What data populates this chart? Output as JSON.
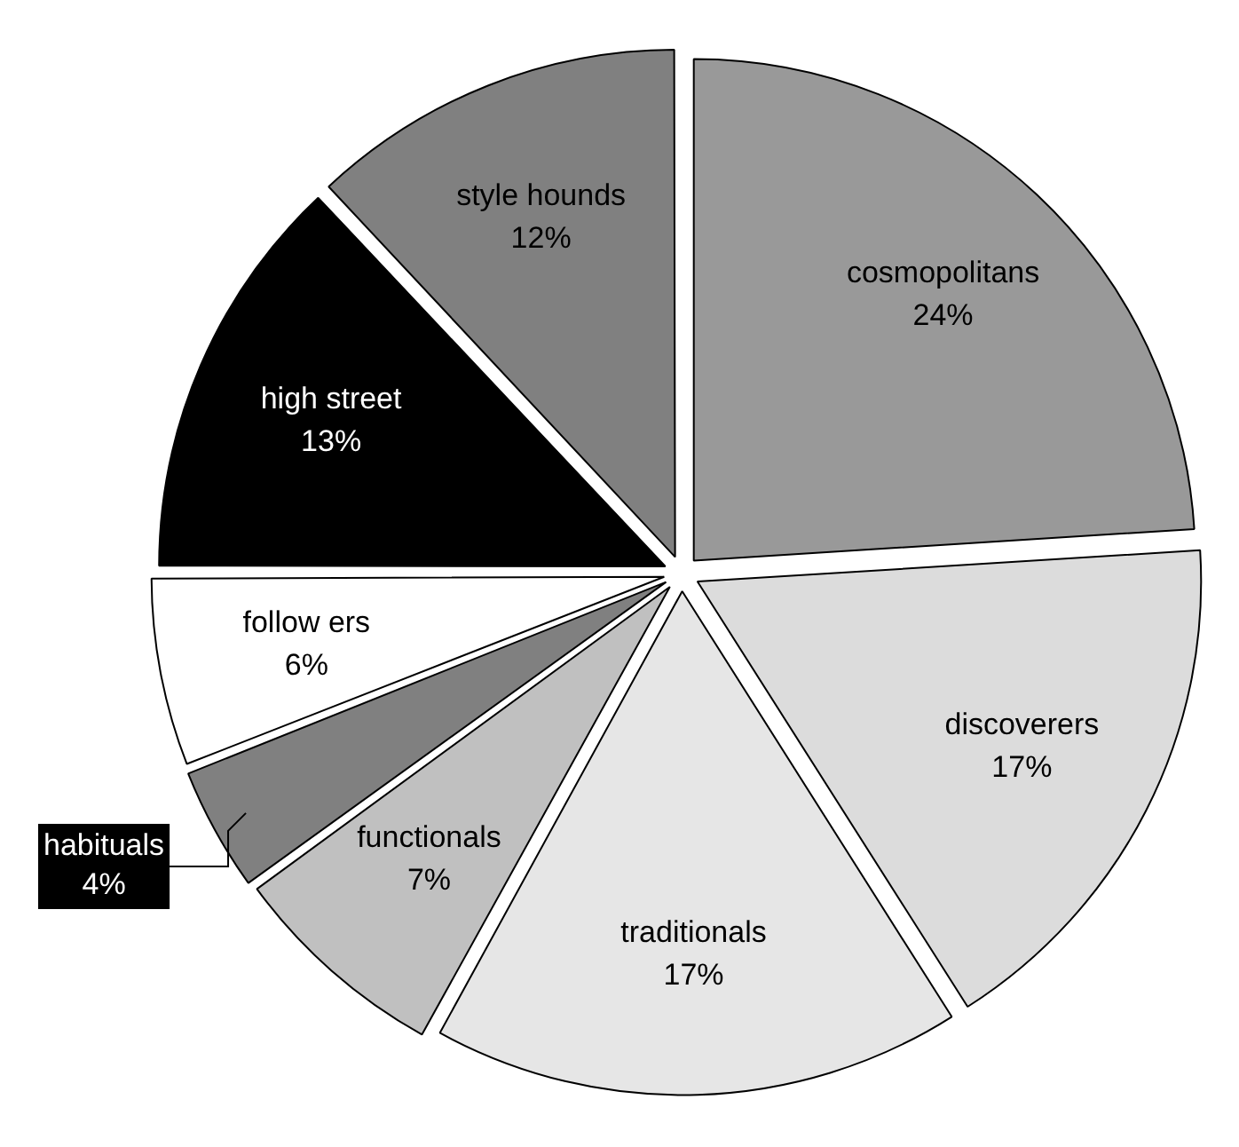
{
  "chart_data": {
    "type": "pie",
    "categories": [
      "cosmopolitans",
      "discoverers",
      "traditionals",
      "functionals",
      "habituals",
      "follow ers",
      "high street",
      "style hounds"
    ],
    "values": [
      24,
      17,
      17,
      7,
      4,
      6,
      13,
      12
    ],
    "value_labels": [
      "24%",
      "17%",
      "17%",
      "7%",
      "4%",
      "6%",
      "13%",
      "12%"
    ],
    "colors": [
      "#999999",
      "#dcdcdc",
      "#e6e6e6",
      "#c0c0c0",
      "#808080",
      "#ffffff",
      "#000000",
      "#808080"
    ],
    "legend": false
  }
}
